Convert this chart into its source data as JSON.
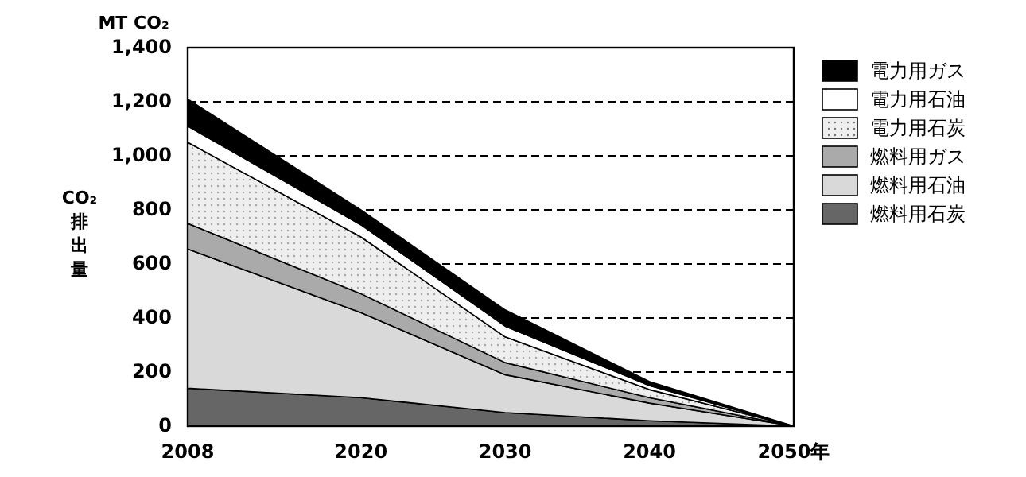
{
  "chart_data": {
    "type": "area",
    "stacked": true,
    "ylabel": "CO₂排出量",
    "annotations": [
      "MT CO₂"
    ],
    "x": [
      2008,
      2020,
      2030,
      2040,
      2050
    ],
    "xlim": [
      2008,
      2050
    ],
    "xticks": [
      2008,
      2020,
      2030,
      2040,
      {
        "value": 2050,
        "label": "2050年"
      }
    ],
    "ylim": [
      0,
      1400
    ],
    "yticks": [
      {
        "value": 0,
        "label": "0"
      },
      {
        "value": 200,
        "label": "200"
      },
      {
        "value": 400,
        "label": "400"
      },
      {
        "value": 600,
        "label": "600"
      },
      {
        "value": 800,
        "label": "800"
      },
      {
        "value": 1000,
        "label": "1,000"
      },
      {
        "value": 1200,
        "label": "1,200"
      },
      {
        "value": 1400,
        "label": "1,400"
      }
    ],
    "grid": "y",
    "legend": "right",
    "series": [
      {
        "name": "燃料用石炭",
        "color": "#666666",
        "values": [
          140,
          105,
          50,
          20,
          0
        ]
      },
      {
        "name": "燃料用石油",
        "color": "#d9d9d9",
        "values": [
          515,
          315,
          140,
          65,
          0
        ]
      },
      {
        "name": "燃料用ガス",
        "color": "#aaaaaa",
        "values": [
          95,
          70,
          45,
          20,
          0
        ]
      },
      {
        "name": "電力用石炭",
        "color": "#eeeeee",
        "values": [
          300,
          210,
          95,
          30,
          0
        ]
      },
      {
        "name": "電力用石油",
        "color": "#ffffff",
        "values": [
          60,
          45,
          40,
          15,
          0
        ]
      },
      {
        "name": "電力用ガス",
        "color": "#000000",
        "values": [
          100,
          55,
          60,
          15,
          0
        ]
      }
    ]
  }
}
